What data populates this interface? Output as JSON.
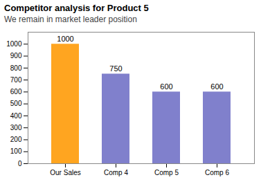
{
  "chart_data": {
    "type": "bar",
    "title": "Competitor analysis for Product 5",
    "subtitle": "We remain in market leader position",
    "categories": [
      "Our Sales",
      "Comp 4",
      "Comp 5",
      "Comp 6"
    ],
    "values": [
      1000,
      750,
      600,
      600
    ],
    "colors": [
      "#FFA520",
      "#8080CC",
      "#8080CC",
      "#8080CC"
    ],
    "ylim": [
      0,
      1100
    ],
    "yticks": [
      0,
      100,
      200,
      300,
      400,
      500,
      600,
      700,
      800,
      900,
      1000
    ],
    "grid": false,
    "data_labels": true
  }
}
